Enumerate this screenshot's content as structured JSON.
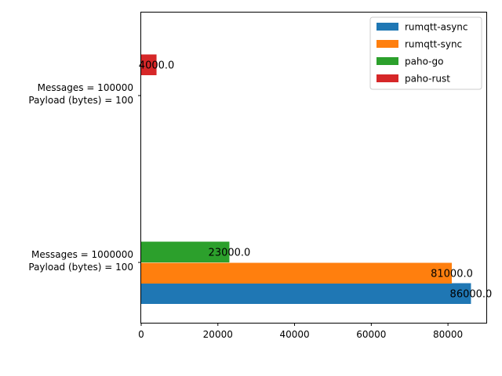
{
  "chart_data": {
    "type": "bar",
    "orientation": "horizontal",
    "categories": [
      [
        "Messages = 1000000",
        "Payload (bytes) = 100"
      ],
      [
        "Messages = 100000",
        "Payload (bytes) = 100"
      ]
    ],
    "series": [
      {
        "name": "rumqtt-async",
        "color": "#1f77b4",
        "values": [
          86000,
          null
        ],
        "labels": [
          "86000.0",
          ""
        ]
      },
      {
        "name": "rumqtt-sync",
        "color": "#ff7f0e",
        "values": [
          81000,
          null
        ],
        "labels": [
          "81000.0",
          ""
        ]
      },
      {
        "name": "paho-go",
        "color": "#2ca02c",
        "values": [
          23000,
          null
        ],
        "labels": [
          "23000.0",
          ""
        ]
      },
      {
        "name": "paho-rust",
        "color": "#d62728",
        "values": [
          null,
          4000
        ],
        "labels": [
          "",
          "4000.0"
        ]
      }
    ],
    "xlim": [
      0,
      90000
    ],
    "xticks": [
      0,
      20000,
      40000,
      60000,
      80000
    ],
    "xlabel": "",
    "ylabel": "",
    "title": "",
    "legend": "top-right",
    "grid": false
  }
}
